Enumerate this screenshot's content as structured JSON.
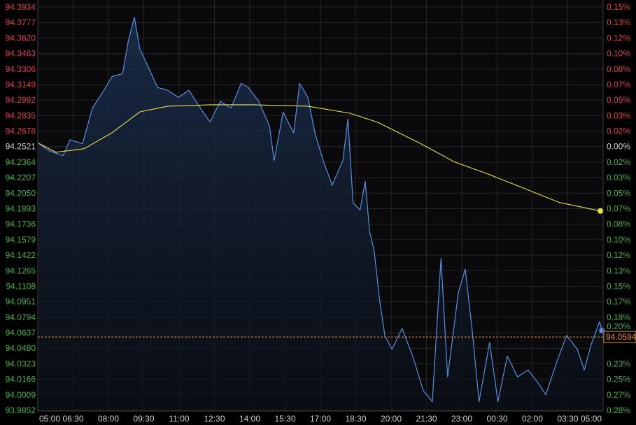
{
  "chart_data": {
    "type": "line",
    "title": "",
    "xlabel": "",
    "ylabel": "",
    "ylim": [
      93.9852,
      94.3934
    ],
    "grid": true,
    "x_tick_labels": [
      "05:00",
      "06:30",
      "08:00",
      "09:30",
      "11:00",
      "12:30",
      "14:00",
      "15:30",
      "17:00",
      "18:30",
      "20:00",
      "21:30",
      "23:00",
      "00:30",
      "02:00",
      "03:30",
      "05:00"
    ],
    "y_tick_labels": [
      "94.3934",
      "94.3777",
      "94.3620",
      "94.3463",
      "94.3306",
      "94.3149",
      "94.2992",
      "94.2835",
      "94.2678",
      "94.2521",
      "94.2364",
      "94.2207",
      "94.2050",
      "94.1893",
      "94.1736",
      "94.1579",
      "94.1422",
      "94.1265",
      "94.1108",
      "94.0951",
      "94.0794",
      "94.0637",
      "94.0480",
      "94.0323",
      "94.0166",
      "94.0009",
      "93.9852"
    ],
    "reference_price": "94.2521",
    "right_tick_labels": [
      "0.15%",
      "0.13%",
      "0.12%",
      "0.10%",
      "0.08%",
      "0.07%",
      "0.05%",
      "0.03%",
      "0.02%",
      "0.00%",
      "0.02%",
      "0.03%",
      "0.05%",
      "0.07%",
      "0.08%",
      "0.10%",
      "0.12%",
      "0.13%",
      "0.15%",
      "0.17%",
      "0.18%",
      "0.20%",
      "",
      "0.23%",
      "0.25%",
      "0.27%",
      "0.28%"
    ],
    "last_price": "94.0594",
    "series": [
      {
        "kind": "price",
        "color": "#5b8fe0",
        "x": [
          "05:02",
          "05:28",
          "06:04",
          "06:22",
          "06:54",
          "07:19",
          "07:42",
          "08:09",
          "08:36",
          "08:50",
          "09:06",
          "09:20",
          "09:41",
          "10:05",
          "10:31",
          "10:58",
          "11:25",
          "12:01",
          "12:19",
          "12:45",
          "13:12",
          "13:38",
          "13:56",
          "14:23",
          "14:50",
          "15:02",
          "15:25",
          "15:52",
          "16:07",
          "16:28",
          "16:46",
          "17:07",
          "17:30",
          "17:57",
          "18:10",
          "18:23",
          "18:41",
          "18:54",
          "19:05",
          "19:17",
          "19:31",
          "19:44",
          "20:02",
          "20:28",
          "20:55",
          "21:22",
          "21:45",
          "22:07",
          "22:24",
          "22:51",
          "23:09",
          "23:26",
          "23:44",
          "00:11",
          "00:32",
          "00:56",
          "01:22",
          "01:49",
          "02:16",
          "02:34",
          "03:01",
          "03:27",
          "03:54",
          "04:12",
          "04:29",
          "04:51",
          "04:57"
        ],
        "y": [
          94.2555,
          94.248,
          94.243,
          94.259,
          94.255,
          94.291,
          94.305,
          94.323,
          94.326,
          94.358,
          94.383,
          94.351,
          94.333,
          94.312,
          94.309,
          94.302,
          94.309,
          94.287,
          94.277,
          94.298,
          94.291,
          94.316,
          94.312,
          94.298,
          94.273,
          94.238,
          94.287,
          94.266,
          94.316,
          94.302,
          94.266,
          94.238,
          94.213,
          94.238,
          94.28,
          94.195,
          94.188,
          94.217,
          94.167,
          94.146,
          94.096,
          94.061,
          94.047,
          94.068,
          94.04,
          94.005,
          93.994,
          94.139,
          94.019,
          94.104,
          94.128,
          94.068,
          93.994,
          94.054,
          93.994,
          94.04,
          94.019,
          94.026,
          94.012,
          94.001,
          94.033,
          94.061,
          94.047,
          94.026,
          94.051,
          94.075,
          94.066
        ]
      },
      {
        "kind": "moving-average",
        "color": "#e8e04a",
        "x": [
          "05:02",
          "05:46",
          "06:58",
          "08:09",
          "09:20",
          "10:31",
          "12:19",
          "14:05",
          "16:28",
          "18:15",
          "19:26",
          "21:13",
          "22:42",
          "00:11",
          "01:40",
          "03:09",
          "04:53"
        ],
        "y": [
          94.2555,
          94.2464,
          94.2499,
          94.2661,
          94.2873,
          94.293,
          94.2944,
          94.2944,
          94.293,
          94.2859,
          94.2767,
          94.2555,
          94.2365,
          94.2237,
          94.2096,
          94.1955,
          94.187
        ]
      }
    ],
    "colors": {
      "up_label": "#e0404e",
      "down_label": "#4caf50",
      "neutral_label": "#d0d0d0",
      "last_price_line": "#e8913a",
      "grid": "#262626"
    }
  }
}
